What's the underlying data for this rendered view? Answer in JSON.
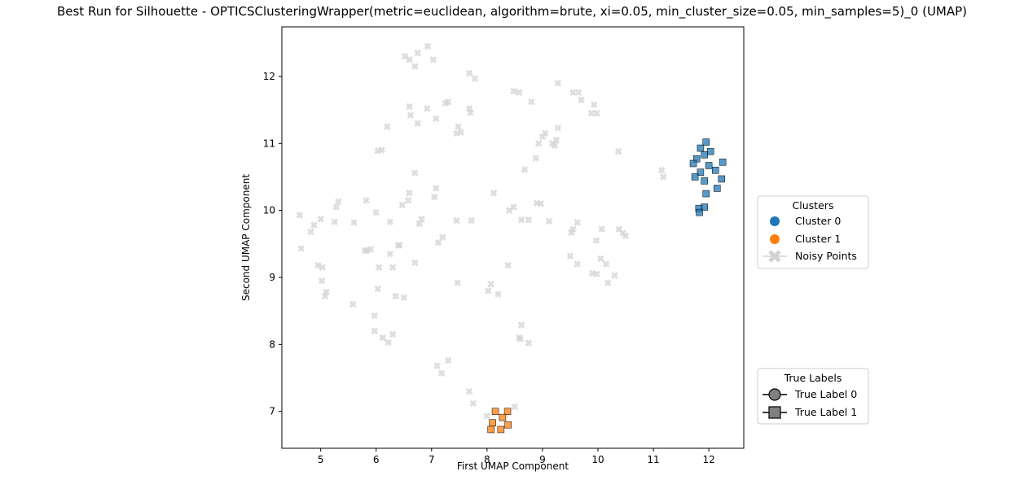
{
  "chart_data": {
    "type": "scatter",
    "title": "Best Run for Silhouette - OPTICSClusteringWrapper(metric=euclidean, algorithm=brute, xi=0.05, min_cluster_size=0.05, min_samples=5)_0 (UMAP)",
    "xlabel": "First UMAP Component",
    "ylabel": "Second UMAP Component",
    "xlim": [
      4.3,
      12.63
    ],
    "ylim": [
      6.45,
      12.74
    ],
    "xticks": [
      5,
      6,
      7,
      8,
      9,
      10,
      11,
      12
    ],
    "yticks": [
      7,
      8,
      9,
      10,
      11,
      12
    ],
    "grid": false,
    "colors": {
      "cluster_0": "#1f77b4",
      "cluster_1": "#ff7f0e",
      "noise": "#d3d3d3"
    },
    "series": [
      {
        "name": "Cluster 0",
        "marker": "square",
        "points": [
          [
            11.95,
            11.02
          ],
          [
            11.85,
            10.93
          ],
          [
            12.03,
            10.88
          ],
          [
            11.92,
            10.83
          ],
          [
            11.78,
            10.77
          ],
          [
            11.72,
            10.7
          ],
          [
            12.25,
            10.72
          ],
          [
            12.0,
            10.67
          ],
          [
            11.85,
            10.57
          ],
          [
            12.12,
            10.6
          ],
          [
            11.75,
            10.5
          ],
          [
            12.23,
            10.47
          ],
          [
            11.92,
            10.44
          ],
          [
            12.15,
            10.33
          ],
          [
            11.95,
            10.25
          ],
          [
            11.92,
            10.05
          ],
          [
            11.82,
            10.03
          ],
          [
            11.83,
            9.97
          ]
        ]
      },
      {
        "name": "Cluster 1",
        "marker": "square",
        "points": [
          [
            8.15,
            7.0
          ],
          [
            8.37,
            7.0
          ],
          [
            8.28,
            6.91
          ],
          [
            8.1,
            6.83
          ],
          [
            8.38,
            6.8
          ],
          [
            8.07,
            6.73
          ],
          [
            8.25,
            6.73
          ]
        ]
      },
      {
        "name": "Noisy Points",
        "marker": "x",
        "points": [
          [
            6.93,
            12.45
          ],
          [
            6.75,
            12.35
          ],
          [
            6.52,
            12.3
          ],
          [
            6.6,
            12.25
          ],
          [
            6.7,
            12.15
          ],
          [
            7.03,
            12.25
          ],
          [
            7.68,
            12.05
          ],
          [
            7.78,
            11.97
          ],
          [
            8.48,
            11.78
          ],
          [
            8.58,
            11.76
          ],
          [
            9.28,
            11.9
          ],
          [
            9.55,
            11.76
          ],
          [
            9.65,
            11.76
          ],
          [
            9.7,
            11.65
          ],
          [
            9.93,
            11.58
          ],
          [
            9.88,
            11.45
          ],
          [
            9.98,
            11.45
          ],
          [
            8.8,
            11.62
          ],
          [
            6.6,
            11.55
          ],
          [
            6.62,
            11.42
          ],
          [
            6.92,
            11.52
          ],
          [
            7.25,
            11.6
          ],
          [
            7.3,
            11.62
          ],
          [
            7.68,
            11.52
          ],
          [
            7.7,
            11.46
          ],
          [
            6.75,
            11.3
          ],
          [
            7.08,
            11.37
          ],
          [
            7.48,
            11.25
          ],
          [
            7.45,
            11.15
          ],
          [
            7.53,
            11.17
          ],
          [
            6.2,
            11.25
          ],
          [
            6.03,
            10.89
          ],
          [
            6.1,
            10.9
          ],
          [
            9.0,
            11.1
          ],
          [
            9.05,
            11.15
          ],
          [
            9.28,
            11.23
          ],
          [
            8.93,
            11.0
          ],
          [
            9.18,
            11.0
          ],
          [
            9.22,
            10.97
          ],
          [
            9.25,
            11.05
          ],
          [
            8.88,
            10.78
          ],
          [
            8.68,
            10.61
          ],
          [
            10.37,
            10.88
          ],
          [
            11.15,
            10.6
          ],
          [
            11.18,
            10.5
          ],
          [
            6.7,
            10.56
          ],
          [
            7.08,
            10.33
          ],
          [
            6.6,
            10.26
          ],
          [
            7.05,
            10.2
          ],
          [
            8.12,
            10.26
          ],
          [
            8.48,
            10.05
          ],
          [
            8.4,
            10.0
          ],
          [
            8.9,
            10.11
          ],
          [
            8.97,
            10.1
          ],
          [
            9.12,
            9.84
          ],
          [
            9.55,
            9.72
          ],
          [
            9.52,
            9.67
          ],
          [
            9.63,
            9.82
          ],
          [
            9.97,
            9.55
          ],
          [
            10.07,
            9.72
          ],
          [
            10.38,
            9.72
          ],
          [
            10.45,
            9.66
          ],
          [
            10.5,
            9.62
          ],
          [
            4.62,
            9.93
          ],
          [
            4.82,
            9.68
          ],
          [
            4.88,
            9.78
          ],
          [
            5.0,
            9.87
          ],
          [
            5.25,
            9.83
          ],
          [
            5.28,
            10.05
          ],
          [
            5.32,
            10.13
          ],
          [
            5.82,
            10.15
          ],
          [
            6.0,
            9.97
          ],
          [
            5.6,
            9.82
          ],
          [
            6.25,
            9.83
          ],
          [
            6.47,
            10.08
          ],
          [
            6.58,
            10.15
          ],
          [
            6.78,
            9.8
          ],
          [
            6.82,
            9.87
          ],
          [
            7.12,
            9.52
          ],
          [
            7.2,
            9.6
          ],
          [
            7.45,
            9.85
          ],
          [
            7.72,
            9.85
          ],
          [
            8.62,
            9.86
          ],
          [
            8.75,
            9.86
          ],
          [
            6.4,
            9.48
          ],
          [
            6.42,
            9.48
          ],
          [
            6.25,
            9.35
          ],
          [
            6.3,
            9.15
          ],
          [
            5.8,
            9.4
          ],
          [
            5.9,
            9.42
          ],
          [
            6.05,
            9.15
          ],
          [
            6.7,
            9.22
          ],
          [
            5.83,
            9.4
          ],
          [
            4.65,
            9.43
          ],
          [
            4.95,
            9.18
          ],
          [
            5.03,
            9.15
          ],
          [
            5.02,
            8.95
          ],
          [
            5.1,
            8.78
          ],
          [
            5.08,
            8.72
          ],
          [
            6.03,
            8.83
          ],
          [
            6.35,
            8.72
          ],
          [
            5.58,
            8.6
          ],
          [
            6.5,
            8.7
          ],
          [
            7.47,
            8.92
          ],
          [
            8.07,
            8.9
          ],
          [
            8.02,
            8.8
          ],
          [
            8.2,
            8.75
          ],
          [
            8.38,
            9.18
          ],
          [
            9.5,
            9.32
          ],
          [
            9.63,
            9.2
          ],
          [
            9.9,
            9.06
          ],
          [
            9.98,
            9.05
          ],
          [
            10.05,
            9.28
          ],
          [
            10.15,
            9.2
          ],
          [
            10.18,
            8.92
          ],
          [
            10.3,
            9.03
          ],
          [
            5.97,
            8.43
          ],
          [
            5.97,
            8.2
          ],
          [
            6.12,
            8.1
          ],
          [
            6.22,
            8.03
          ],
          [
            6.3,
            8.15
          ],
          [
            8.62,
            8.29
          ],
          [
            8.58,
            8.1
          ],
          [
            8.6,
            8.08
          ],
          [
            8.75,
            8.02
          ],
          [
            7.1,
            7.68
          ],
          [
            7.18,
            7.57
          ],
          [
            7.3,
            7.76
          ],
          [
            7.68,
            7.3
          ],
          [
            7.75,
            7.12
          ],
          [
            8.0,
            6.93
          ],
          [
            8.5,
            7.07
          ]
        ]
      }
    ],
    "legends": [
      {
        "title": "Clusters",
        "entries": [
          {
            "label": "Cluster 0",
            "symbol": "circle",
            "color": "#1f77b4"
          },
          {
            "label": "Cluster 1",
            "symbol": "circle",
            "color": "#ff7f0e"
          },
          {
            "label": "Noisy Points",
            "symbol": "x-line",
            "color": "#d3d3d3"
          }
        ]
      },
      {
        "title": "True Labels",
        "entries": [
          {
            "label": "True Label 0",
            "symbol": "circle-line",
            "color": "#808080"
          },
          {
            "label": "True Label 1",
            "symbol": "square-line",
            "color": "#808080"
          }
        ]
      }
    ]
  }
}
